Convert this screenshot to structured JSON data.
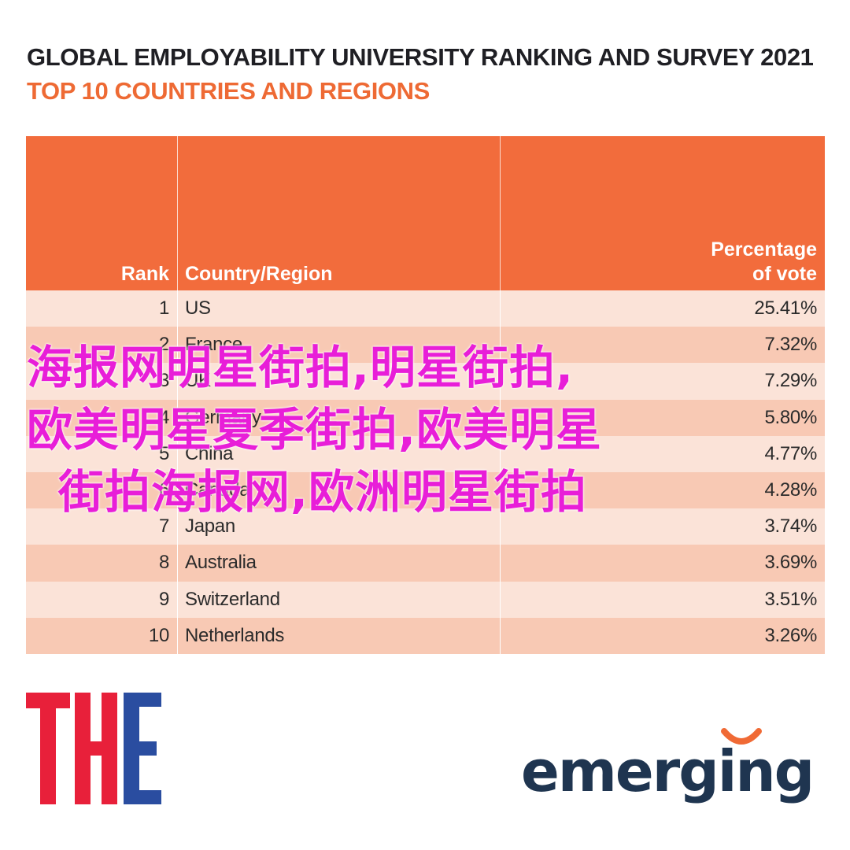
{
  "header": {
    "title": "GLOBAL EMPLOYABILITY UNIVERSITY RANKING AND SURVEY 2021",
    "subtitle": "TOP 10 COUNTRIES AND REGIONS"
  },
  "table": {
    "columns": {
      "rank": "Rank",
      "country": "Country/Region",
      "percentage": "Percentage\nof vote"
    },
    "rows": [
      {
        "rank": "1",
        "country": "US",
        "percentage": "25.41%"
      },
      {
        "rank": "2",
        "country": "France",
        "percentage": "7.32%"
      },
      {
        "rank": "3",
        "country": "UK",
        "percentage": "7.29%"
      },
      {
        "rank": "4",
        "country": "Germany",
        "percentage": "5.80%"
      },
      {
        "rank": "5",
        "country": "China",
        "percentage": "4.77%"
      },
      {
        "rank": "6",
        "country": "Canada",
        "percentage": "4.28%"
      },
      {
        "rank": "7",
        "country": "Japan",
        "percentage": "3.74%"
      },
      {
        "rank": "8",
        "country": "Australia",
        "percentage": "3.69%"
      },
      {
        "rank": "9",
        "country": "Switzerland",
        "percentage": "3.51%"
      },
      {
        "rank": "10",
        "country": "Netherlands",
        "percentage": "3.26%"
      }
    ]
  },
  "logos": {
    "the": "THE",
    "emerging": "emerging"
  },
  "watermark": {
    "lines": [
      "海报网明星街拍,明星街拍,",
      "欧美明星夏季街拍,欧美明星",
      "街拍海报网,欧洲明星街拍"
    ]
  },
  "colors": {
    "title": "#1f1f24",
    "subtitle": "#ee6a34",
    "header_bg": "#f26c3c",
    "row_light": "#fbe3d8",
    "row_dark": "#f8c9b4",
    "the_red": "#e8203a",
    "the_blue": "#2a4da0",
    "emerging_text": "#1f3550",
    "emerging_arc": "#f06a35",
    "watermark": "#e81ed8"
  }
}
